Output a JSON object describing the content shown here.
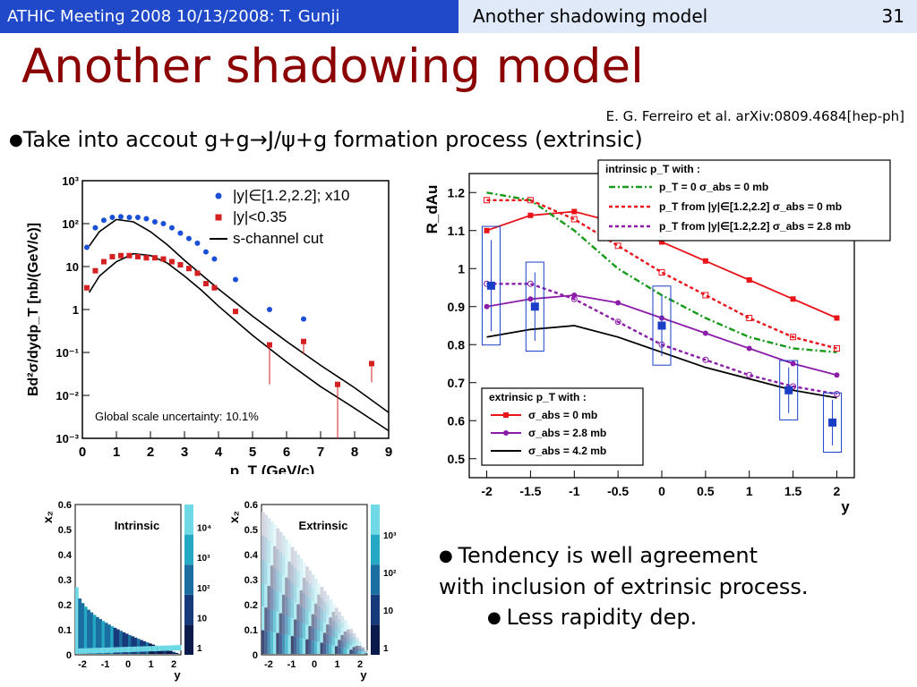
{
  "header": {
    "meeting": "ATHIC Meeting 2008 10/13/2008: T. Gunji",
    "slide_title": "Another shadowing model",
    "page_number": "31"
  },
  "title": "Another shadowing model",
  "citation": "E. G. Ferreiro et al. arXiv:0809.4684[hep-ph]",
  "bullet1": "Take into accout g+g→J/ψ+g formation process (extrinsic)",
  "note": {
    "line1": "Tendency is well agreement",
    "line2": "with inclusion of extrinsic process.",
    "line3": "Less rapidity dep."
  },
  "colors": {
    "header_blue": "#1f49c9",
    "header_light": "#dfe9f7",
    "title_red": "#8b0000"
  },
  "chart_data": [
    {
      "type": "scatter",
      "ylabel": "Bd²σ/dydp_T [nb/(GeV/c)]",
      "xlabel": "p_T (GeV/c)",
      "xlim": [
        0,
        9
      ],
      "ylim_log10": [
        -3,
        3
      ],
      "x_ticks": [
        "0",
        "1",
        "2",
        "3",
        "4",
        "5",
        "6",
        "7",
        "8",
        "9"
      ],
      "y_ticks": [
        "10⁻³",
        "10⁻²",
        "10⁻¹",
        "1",
        "10",
        "10²",
        "10³"
      ],
      "legend": [
        "|y|∈[1.2,2.2]; x10",
        "|y|<0.35",
        "s-channel cut"
      ],
      "annotation": "Global scale uncertainty: 10.1%",
      "series": [
        {
          "name": "|y|∈[1.2,2.2]; x10",
          "color": "#1a4fd6",
          "x": [
            0.13,
            0.38,
            0.63,
            0.88,
            1.13,
            1.38,
            1.63,
            1.88,
            2.13,
            2.38,
            2.63,
            2.88,
            3.13,
            3.38,
            3.63,
            3.88,
            4.5,
            5.5,
            6.5
          ],
          "y": [
            28,
            80,
            120,
            140,
            145,
            140,
            140,
            130,
            110,
            100,
            80,
            60,
            45,
            35,
            22,
            15,
            5,
            1.0,
            0.6
          ]
        },
        {
          "name": "|y|<0.35",
          "color": "#d42020",
          "x": [
            0.13,
            0.38,
            0.63,
            0.88,
            1.13,
            1.38,
            1.63,
            1.88,
            2.13,
            2.38,
            2.63,
            2.88,
            3.13,
            3.38,
            3.63,
            3.88,
            4.5,
            5.5,
            6.5,
            7.5,
            8.5
          ],
          "y": [
            3.2,
            8,
            13,
            17,
            18,
            18,
            17,
            16,
            16,
            15,
            13,
            11,
            9,
            7,
            4,
            3.2,
            0.9,
            0.15,
            0.18,
            0.018,
            0.055
          ]
        },
        {
          "name": "s-channel cut",
          "color": "#000000",
          "x": [
            0.2,
            0.5,
            1,
            1.5,
            2,
            2.5,
            3,
            3.5,
            4,
            5,
            6,
            7,
            8,
            9
          ],
          "y": [
            2.5,
            6,
            13,
            20,
            18,
            12,
            6,
            2.8,
            1.2,
            0.25,
            0.06,
            0.016,
            0.005,
            0.0015
          ]
        },
        {
          "name": "",
          "color": "#000000",
          "x": [
            0.2,
            0.5,
            1,
            1.5,
            2,
            2.5,
            3,
            4,
            5,
            6,
            7,
            8,
            9
          ],
          "y": [
            30,
            65,
            125,
            110,
            65,
            32,
            14,
            3,
            0.7,
            0.18,
            0.05,
            0.015,
            0.004
          ]
        }
      ]
    },
    {
      "type": "line",
      "ylabel": "R_dAu",
      "xlabel": "y",
      "xlim": [
        -2.2,
        2.2
      ],
      "ylim": [
        0.45,
        1.25
      ],
      "x_ticks": [
        "-2",
        "-1.5",
        "-1",
        "-0.5",
        "0",
        "0.5",
        "1",
        "1.5",
        "2"
      ],
      "y_ticks": [
        "0.5",
        "0.6",
        "0.7",
        "0.8",
        "0.9",
        "1",
        "1.1",
        "1.2"
      ],
      "legend_intrinsic_title": "intrinsic p_T with :",
      "legend_intrinsic": [
        "p_T = 0 σ_abs = 0 mb",
        "p_T from |y|∈[1.2,2.2] σ_abs = 0 mb",
        "p_T from |y|∈[1.2,2.2] σ_abs = 2.8 mb"
      ],
      "legend_extrinsic_title": "extrinsic p_T with :",
      "legend_extrinsic": [
        "σ_abs = 0 mb",
        "σ_abs = 2.8 mb",
        "σ_abs = 4.2 mb"
      ],
      "series": [
        {
          "name": "extrinsic σ_abs = 0 mb",
          "color": "#e8141a",
          "x": [
            -2,
            -1.5,
            -1,
            -0.5,
            0,
            0.5,
            1,
            1.5,
            2
          ],
          "y": [
            1.1,
            1.14,
            1.15,
            1.12,
            1.07,
            1.02,
            0.97,
            0.92,
            0.87
          ]
        },
        {
          "name": "extrinsic σ_abs = 2.8 mb",
          "color": "#8a1ca8",
          "x": [
            -2,
            -1.5,
            -1,
            -0.5,
            0,
            0.5,
            1,
            1.5,
            2
          ],
          "y": [
            0.9,
            0.92,
            0.93,
            0.91,
            0.87,
            0.83,
            0.79,
            0.75,
            0.72
          ]
        },
        {
          "name": "extrinsic σ_abs = 4.2 mb",
          "color": "#000000",
          "x": [
            -2,
            -1.5,
            -1,
            -0.5,
            0,
            0.5,
            1,
            1.5,
            2
          ],
          "y": [
            0.82,
            0.84,
            0.85,
            0.82,
            0.78,
            0.74,
            0.71,
            0.68,
            0.66
          ]
        },
        {
          "name": "intrinsic p_T = 0 σ_abs = 0 mb",
          "color": "#1a9a1a",
          "x": [
            -2,
            -1.5,
            -1,
            -0.5,
            0,
            0.5,
            1,
            1.5,
            2
          ],
          "y": [
            1.2,
            1.18,
            1.1,
            1.0,
            0.93,
            0.87,
            0.82,
            0.79,
            0.78
          ]
        },
        {
          "name": "intrinsic p_T from |y|∈[1.2,2.2] σ_abs = 0 mb",
          "color": "#e8141a",
          "x": [
            -2,
            -1.5,
            -1,
            -0.5,
            0,
            0.5,
            1,
            1.5,
            2
          ],
          "y": [
            1.18,
            1.18,
            1.13,
            1.06,
            0.99,
            0.93,
            0.87,
            0.82,
            0.79
          ]
        },
        {
          "name": "intrinsic p_T from |y|∈[1.2,2.2] σ_abs = 2.8 mb",
          "color": "#8a1ca8",
          "x": [
            -2,
            -1.5,
            -1,
            -0.5,
            0,
            0.5,
            1,
            1.5,
            2
          ],
          "y": [
            0.96,
            0.96,
            0.92,
            0.86,
            0.8,
            0.76,
            0.72,
            0.69,
            0.67
          ]
        }
      ],
      "data_points": {
        "x": [
          -1.95,
          -1.45,
          0.0,
          1.45,
          1.95
        ],
        "y": [
          0.955,
          0.9,
          0.85,
          0.68,
          0.595
        ],
        "yerr": [
          0.12,
          0.09,
          0.08,
          0.06,
          0.06
        ]
      }
    },
    {
      "type": "heatmap",
      "title": "Intrinsic",
      "xlabel": "y",
      "ylabel": "x₂",
      "x_ticks": [
        "-2",
        "-1",
        "0",
        "1",
        "2"
      ],
      "y_ticks": [
        "0",
        "0.1",
        "0.2",
        "0.3",
        "0.4",
        "0.5",
        "0.6"
      ],
      "z_ticks": [
        "1",
        "10",
        "10²",
        "10³",
        "10⁴"
      ]
    },
    {
      "type": "heatmap",
      "title": "Extrinsic",
      "xlabel": "y",
      "ylabel": "x₂",
      "x_ticks": [
        "-2",
        "-1",
        "0",
        "1",
        "2"
      ],
      "y_ticks": [
        "0",
        "0.1",
        "0.2",
        "0.3",
        "0.4",
        "0.5",
        "0.6"
      ],
      "z_ticks": [
        "1",
        "10",
        "10²",
        "10³"
      ]
    }
  ]
}
